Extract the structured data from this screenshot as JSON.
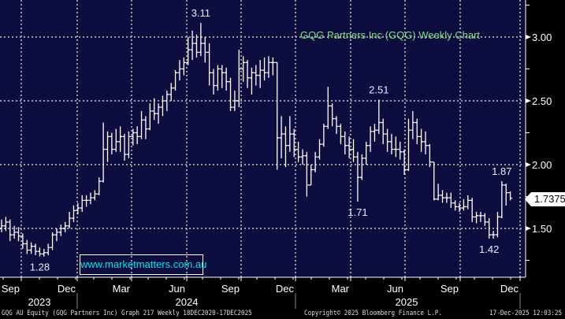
{
  "chart_data": {
    "type": "ohlc",
    "title": "GQG Partners Inc (GQG) Weekly Chart",
    "watermark": "www.marketmatters.com.au",
    "ylim": [
      1.15,
      3.3
    ],
    "y_ticks": [
      "3.00",
      "2.50",
      "2.00",
      "1.50"
    ],
    "y_tick_values": [
      3.0,
      2.5,
      2.0,
      1.5
    ],
    "last_price": "1.7375",
    "grid": true,
    "x_month_labels": [
      "Sep",
      "Dec",
      "Mar",
      "Jun",
      "Sep",
      "Dec",
      "Mar",
      "Jun",
      "Sep",
      "Dec"
    ],
    "x_year_labels": [
      "2023",
      "2024",
      "2025"
    ],
    "ohlc_order": "open,high,low,close",
    "bars": [
      [
        1.5,
        1.57,
        1.47,
        1.52
      ],
      [
        1.52,
        1.59,
        1.48,
        1.55
      ],
      [
        1.55,
        1.57,
        1.4,
        1.45
      ],
      [
        1.45,
        1.52,
        1.42,
        1.47
      ],
      [
        1.47,
        1.51,
        1.4,
        1.44
      ],
      [
        1.44,
        1.46,
        1.34,
        1.38
      ],
      [
        1.38,
        1.41,
        1.3,
        1.33
      ],
      [
        1.33,
        1.39,
        1.3,
        1.36
      ],
      [
        1.36,
        1.38,
        1.29,
        1.32
      ],
      [
        1.32,
        1.35,
        1.28,
        1.3
      ],
      [
        1.3,
        1.34,
        1.28,
        1.31
      ],
      [
        1.31,
        1.38,
        1.29,
        1.35
      ],
      [
        1.35,
        1.47,
        1.33,
        1.45
      ],
      [
        1.45,
        1.5,
        1.4,
        1.47
      ],
      [
        1.47,
        1.53,
        1.44,
        1.5
      ],
      [
        1.5,
        1.55,
        1.47,
        1.52
      ],
      [
        1.52,
        1.63,
        1.5,
        1.58
      ],
      [
        1.58,
        1.68,
        1.55,
        1.64
      ],
      [
        1.64,
        1.7,
        1.61,
        1.66
      ],
      [
        1.66,
        1.76,
        1.63,
        1.72
      ],
      [
        1.72,
        1.76,
        1.67,
        1.72
      ],
      [
        1.72,
        1.78,
        1.69,
        1.74
      ],
      [
        1.74,
        1.8,
        1.72,
        1.77
      ],
      [
        1.77,
        1.9,
        1.76,
        1.87
      ],
      [
        1.87,
        2.33,
        1.86,
        2.12
      ],
      [
        2.12,
        2.26,
        2.02,
        2.22
      ],
      [
        2.22,
        2.25,
        2.08,
        2.12
      ],
      [
        2.12,
        2.28,
        2.1,
        2.18
      ],
      [
        2.18,
        2.3,
        2.1,
        2.22
      ],
      [
        2.22,
        2.24,
        2.03,
        2.08
      ],
      [
        2.08,
        2.26,
        2.05,
        2.22
      ],
      [
        2.22,
        2.28,
        2.15,
        2.25
      ],
      [
        2.25,
        2.3,
        2.16,
        2.22
      ],
      [
        2.22,
        2.42,
        2.2,
        2.35
      ],
      [
        2.35,
        2.38,
        2.2,
        2.28
      ],
      [
        2.28,
        2.48,
        2.27,
        2.42
      ],
      [
        2.42,
        2.52,
        2.35,
        2.4
      ],
      [
        2.4,
        2.48,
        2.32,
        2.45
      ],
      [
        2.45,
        2.54,
        2.38,
        2.5
      ],
      [
        2.5,
        2.58,
        2.42,
        2.55
      ],
      [
        2.55,
        2.64,
        2.5,
        2.6
      ],
      [
        2.6,
        2.74,
        2.58,
        2.72
      ],
      [
        2.72,
        2.82,
        2.66,
        2.75
      ],
      [
        2.75,
        2.84,
        2.7,
        2.8
      ],
      [
        2.8,
        3.0,
        2.78,
        2.9
      ],
      [
        2.9,
        3.05,
        2.82,
        2.95
      ],
      [
        2.95,
        3.02,
        2.84,
        2.88
      ],
      [
        2.88,
        3.11,
        2.85,
        2.95
      ],
      [
        2.95,
        3.0,
        2.8,
        2.88
      ],
      [
        2.88,
        2.95,
        2.62,
        2.72
      ],
      [
        2.72,
        2.75,
        2.55,
        2.62
      ],
      [
        2.62,
        2.78,
        2.58,
        2.75
      ],
      [
        2.75,
        2.78,
        2.6,
        2.72
      ],
      [
        2.72,
        2.76,
        2.58,
        2.65
      ],
      [
        2.65,
        2.68,
        2.42,
        2.45
      ],
      [
        2.45,
        2.58,
        2.42,
        2.5
      ],
      [
        2.5,
        2.9,
        2.45,
        2.75
      ],
      [
        2.75,
        2.85,
        2.65,
        2.8
      ],
      [
        2.8,
        2.82,
        2.6,
        2.68
      ],
      [
        2.68,
        2.76,
        2.55,
        2.72
      ],
      [
        2.72,
        2.78,
        2.62,
        2.7
      ],
      [
        2.7,
        2.82,
        2.6,
        2.74
      ],
      [
        2.74,
        2.84,
        2.66,
        2.72
      ],
      [
        2.72,
        2.85,
        2.68,
        2.8
      ],
      [
        2.8,
        2.84,
        2.7,
        2.8
      ],
      [
        2.8,
        2.8,
        1.96,
        2.21
      ],
      [
        2.21,
        2.38,
        2.05,
        2.24
      ],
      [
        2.24,
        2.3,
        1.98,
        2.15
      ],
      [
        2.15,
        2.38,
        2.1,
        2.24
      ],
      [
        2.24,
        2.28,
        2.06,
        2.12
      ],
      [
        2.12,
        2.18,
        2.02,
        2.06
      ],
      [
        2.06,
        2.12,
        2.0,
        2.07
      ],
      [
        2.07,
        2.1,
        1.75,
        1.84
      ],
      [
        1.84,
        2.0,
        1.84,
        1.96
      ],
      [
        1.96,
        2.1,
        1.94,
        2.06
      ],
      [
        2.06,
        2.2,
        2.04,
        2.16
      ],
      [
        2.16,
        2.32,
        2.14,
        2.3
      ],
      [
        2.3,
        2.61,
        2.28,
        2.46
      ],
      [
        2.46,
        2.48,
        2.3,
        2.36
      ],
      [
        2.36,
        2.38,
        2.24,
        2.3
      ],
      [
        2.3,
        2.32,
        2.16,
        2.22
      ],
      [
        2.22,
        2.26,
        2.08,
        2.15
      ],
      [
        2.15,
        2.22,
        2.05,
        2.12
      ],
      [
        2.12,
        2.2,
        2.02,
        2.06
      ],
      [
        2.06,
        2.1,
        1.71,
        1.9
      ],
      [
        1.9,
        2.08,
        1.88,
        2.05
      ],
      [
        2.05,
        2.18,
        2.0,
        2.15
      ],
      [
        2.15,
        2.3,
        2.1,
        2.26
      ],
      [
        2.26,
        2.32,
        2.18,
        2.27
      ],
      [
        2.27,
        2.51,
        2.24,
        2.33
      ],
      [
        2.33,
        2.36,
        2.16,
        2.24
      ],
      [
        2.24,
        2.28,
        2.1,
        2.18
      ],
      [
        2.18,
        2.24,
        2.08,
        2.12
      ],
      [
        2.12,
        2.22,
        2.06,
        2.12
      ],
      [
        2.12,
        2.18,
        2.04,
        2.1
      ],
      [
        2.1,
        2.12,
        1.92,
        1.96
      ],
      [
        1.96,
        2.36,
        1.95,
        2.27
      ],
      [
        2.27,
        2.42,
        2.2,
        2.33
      ],
      [
        2.33,
        2.36,
        2.16,
        2.22
      ],
      [
        2.22,
        2.28,
        2.1,
        2.18
      ],
      [
        2.18,
        2.26,
        2.08,
        2.15
      ],
      [
        2.15,
        2.16,
        1.98,
        2.02
      ],
      [
        2.02,
        2.02,
        1.72,
        1.73
      ],
      [
        1.73,
        1.85,
        1.72,
        1.76
      ],
      [
        1.76,
        1.8,
        1.7,
        1.74
      ],
      [
        1.74,
        1.78,
        1.7,
        1.74
      ],
      [
        1.74,
        1.78,
        1.66,
        1.7
      ],
      [
        1.7,
        1.72,
        1.64,
        1.67
      ],
      [
        1.67,
        1.7,
        1.63,
        1.66
      ],
      [
        1.66,
        1.73,
        1.64,
        1.67
      ],
      [
        1.67,
        1.76,
        1.65,
        1.72
      ],
      [
        1.72,
        1.74,
        1.55,
        1.59
      ],
      [
        1.59,
        1.63,
        1.54,
        1.6
      ],
      [
        1.6,
        1.63,
        1.55,
        1.6
      ],
      [
        1.6,
        1.62,
        1.52,
        1.55
      ],
      [
        1.55,
        1.58,
        1.42,
        1.45
      ],
      [
        1.45,
        1.48,
        1.42,
        1.45
      ],
      [
        1.45,
        1.63,
        1.43,
        1.59
      ],
      [
        1.59,
        1.87,
        1.58,
        1.84
      ],
      [
        1.84,
        1.85,
        1.68,
        1.78
      ],
      [
        1.78,
        1.79,
        1.72,
        1.7375
      ]
    ],
    "annotations": [
      {
        "text": "3.11",
        "bar": 47,
        "value": 3.11,
        "pos": "above"
      },
      {
        "text": "2.51",
        "bar": 89,
        "value": 2.51,
        "pos": "above"
      },
      {
        "text": "1.87",
        "bar": 118,
        "value": 1.87,
        "pos": "above"
      },
      {
        "text": "1.28",
        "bar": 9,
        "value": 1.28,
        "pos": "below"
      },
      {
        "text": "1.71",
        "bar": 84,
        "value": 1.71,
        "pos": "below"
      },
      {
        "text": "1.42",
        "bar": 115,
        "value": 1.42,
        "pos": "below"
      }
    ]
  },
  "footer": {
    "left": "GQG AU Equity (GQG Partners Inc) Graph 217 Weekly 18DEC2020-17DEC2025",
    "center": "Copyright© 2025 Bloomberg Finance L.P.",
    "right": "17-Dec-2025 12:03:25"
  },
  "colors": {
    "background": "#0d0d40",
    "bars": "#ffffff",
    "grid": "#9a9a9a",
    "title": "#7ee07e",
    "watermark": "#00e6ea"
  }
}
